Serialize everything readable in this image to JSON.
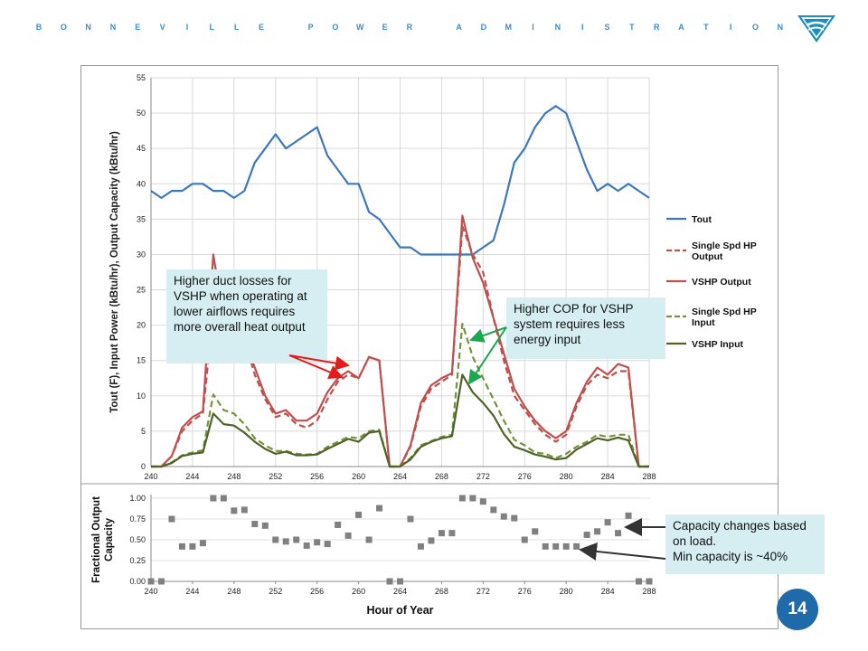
{
  "header": {
    "org_name": "BONNEVILLE POWER ADMINISTRATION",
    "logo_icon": "bpa-triangle-logo-icon"
  },
  "page_number": "14",
  "colors": {
    "tout": "#3c78bc",
    "output": "#c0504d",
    "input": "#4f6228",
    "input_single": "#76933c",
    "marker": "#808080",
    "callout_bg": "#d6eef2",
    "brand": "#3a8fc4",
    "badge": "#1f6aa8"
  },
  "callouts": {
    "duct_losses": "Higher duct losses for VSHP when operating at lower airflows requires more overall heat output",
    "cop": "Higher COP for VSHP system requires less energy input",
    "capacity": "Capacity changes based on load.\nMin capacity is ~40%"
  },
  "chart_data": [
    {
      "type": "line",
      "ylabel": "Tout (F), Input Power (kBtu/hr), Output Capacity (kBtu/hr)",
      "xlabel": "",
      "xlim": [
        240,
        288
      ],
      "ylim": [
        0,
        55
      ],
      "x_ticks": [
        240,
        244,
        248,
        252,
        256,
        260,
        264,
        268,
        272,
        276,
        280,
        284,
        288
      ],
      "y_ticks": [
        0,
        5,
        10,
        15,
        20,
        25,
        30,
        35,
        40,
        45,
        50,
        55
      ],
      "grid": true,
      "legend_position": "right",
      "x": [
        240,
        241,
        242,
        243,
        244,
        245,
        246,
        247,
        248,
        249,
        250,
        251,
        252,
        253,
        254,
        255,
        256,
        257,
        258,
        259,
        260,
        261,
        262,
        263,
        264,
        265,
        266,
        267,
        268,
        269,
        270,
        271,
        272,
        273,
        274,
        275,
        276,
        277,
        278,
        279,
        280,
        281,
        282,
        283,
        284,
        285,
        286,
        287,
        288
      ],
      "series": [
        {
          "name": "Tout",
          "style": "solid",
          "color": "#3c78bc",
          "values": [
            39,
            38,
            39,
            39,
            40,
            40,
            39,
            39,
            38,
            39,
            43,
            45,
            47,
            45,
            46,
            47,
            48,
            44,
            42,
            40,
            40,
            36,
            35,
            33,
            31,
            31,
            30,
            30,
            30,
            30,
            30,
            30,
            31,
            32,
            37,
            43,
            45,
            48,
            50,
            51,
            50,
            46,
            42,
            39,
            40,
            39,
            40,
            39,
            38
          ]
        },
        {
          "name": "Single Spd HP Output",
          "style": "dashed",
          "color": "#c0504d",
          "values": [
            0,
            0,
            1.5,
            5,
            6.5,
            7.5,
            22,
            21,
            20,
            18,
            13,
            9.5,
            7,
            7.5,
            6,
            5.5,
            6.5,
            9.5,
            12,
            13,
            12.5,
            15.5,
            15,
            0,
            0,
            2.8,
            8.5,
            11,
            12,
            13,
            34,
            30,
            27.5,
            21,
            15,
            10,
            8,
            6,
            4.5,
            3.5,
            4.5,
            8.5,
            11.5,
            13,
            12.5,
            13.5,
            13.5,
            0,
            0
          ]
        },
        {
          "name": "VSHP Output",
          "style": "solid",
          "color": "#c0504d",
          "values": [
            0,
            0,
            1.5,
            5.5,
            7,
            7.8,
            30,
            21,
            20,
            18,
            14,
            10,
            7.5,
            8,
            6.5,
            6.5,
            7.5,
            10.5,
            12.5,
            13.5,
            12.5,
            15.5,
            15,
            0,
            0,
            3,
            9,
            11.5,
            12.5,
            13.2,
            35.5,
            29.5,
            26,
            21,
            16,
            11,
            8.5,
            6.5,
            5,
            4,
            5,
            9,
            12,
            14,
            13,
            14.5,
            14,
            0,
            0
          ]
        },
        {
          "name": "Single Spd HP Input",
          "style": "dashed",
          "color": "#76933c",
          "values": [
            0,
            0,
            0.6,
            1.6,
            2,
            2.3,
            10.2,
            8,
            7.5,
            6,
            4,
            3,
            2.2,
            2.2,
            1.8,
            1.7,
            1.8,
            2.8,
            3.5,
            4.2,
            4,
            5,
            5.2,
            0,
            0,
            1.2,
            3,
            3.6,
            4.2,
            4.5,
            20.2,
            15.5,
            12.5,
            9.5,
            6.5,
            3.8,
            3,
            2,
            1.8,
            1.2,
            1.8,
            2.8,
            3.5,
            4.5,
            4.2,
            4.5,
            4.5,
            0,
            0
          ]
        },
        {
          "name": "VSHP Input",
          "style": "solid",
          "color": "#4f6228",
          "values": [
            0,
            0,
            0.5,
            1.5,
            1.8,
            2,
            7.5,
            6,
            5.8,
            4.8,
            3.5,
            2.5,
            1.8,
            2.1,
            1.6,
            1.6,
            1.7,
            2.5,
            3.2,
            3.9,
            3.5,
            4.8,
            5,
            0,
            0,
            1,
            2.8,
            3.5,
            4,
            4.3,
            13,
            10.5,
            9,
            7.2,
            4.6,
            2.8,
            2.3,
            1.7,
            1.4,
            1,
            1.2,
            2.4,
            3.2,
            4,
            3.7,
            4.1,
            3.7,
            0,
            0
          ]
        }
      ]
    },
    {
      "type": "scatter",
      "ylabel": "Fractional Output Capacity",
      "xlabel": "Hour of Year",
      "xlim": [
        240,
        288
      ],
      "ylim": [
        0,
        1
      ],
      "x_ticks": [
        240,
        244,
        248,
        252,
        256,
        260,
        264,
        268,
        272,
        276,
        280,
        284,
        288
      ],
      "y_tick_labels": [
        "0.00",
        "0.25",
        "0.50",
        "0.75",
        "1.00"
      ],
      "y_ticks": [
        0,
        0.25,
        0.5,
        0.75,
        1
      ],
      "x": [
        240,
        241,
        242,
        243,
        244,
        245,
        246,
        247,
        248,
        249,
        250,
        251,
        252,
        253,
        254,
        255,
        256,
        257,
        258,
        259,
        260,
        261,
        262,
        263,
        264,
        265,
        266,
        267,
        268,
        269,
        270,
        271,
        272,
        273,
        274,
        275,
        276,
        277,
        278,
        279,
        280,
        281,
        282,
        283,
        284,
        285,
        286,
        287,
        288
      ],
      "values": [
        0,
        0,
        0.75,
        0.42,
        0.42,
        0.46,
        1,
        1,
        0.85,
        0.86,
        0.69,
        0.67,
        0.5,
        0.48,
        0.5,
        0.43,
        0.47,
        0.45,
        0.68,
        0.55,
        0.8,
        0.5,
        0.88,
        0,
        0,
        0.75,
        0.42,
        0.49,
        0.58,
        0.58,
        1,
        1,
        0.96,
        0.86,
        0.78,
        0.76,
        0.5,
        0.6,
        0.42,
        0.42,
        0.42,
        0.42,
        0.56,
        0.6,
        0.71,
        0.58,
        0.79,
        0,
        0
      ]
    }
  ]
}
